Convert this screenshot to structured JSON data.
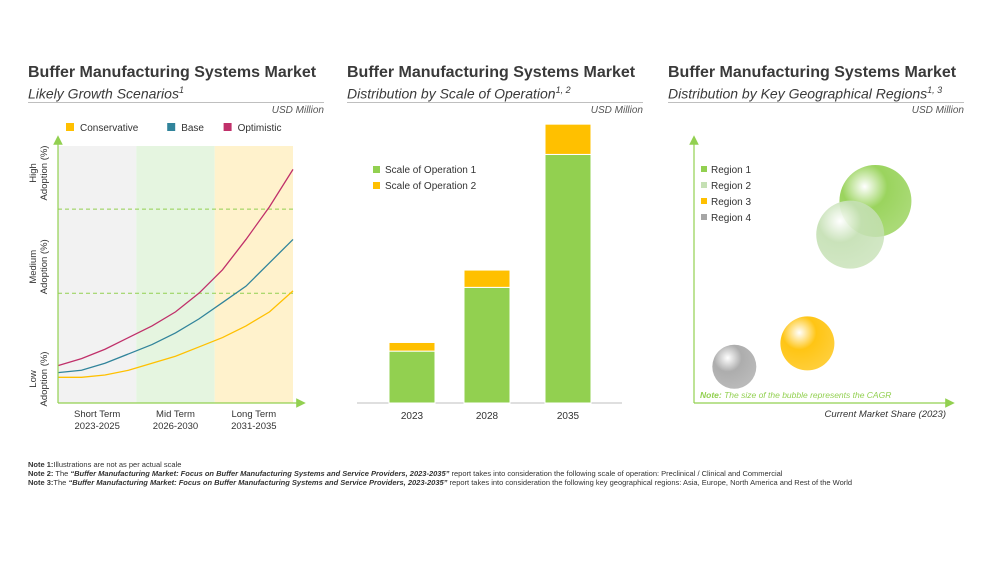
{
  "panels": [
    {
      "title": "Buffer Manufacturing Systems Market",
      "subtitle": "Likely Growth Scenarios",
      "subtitle_sup": "1",
      "unit": "USD Million"
    },
    {
      "title": "Buffer Manufacturing Systems Market",
      "subtitle": "Distribution by Scale of Operation",
      "subtitle_sup": "1, 2",
      "unit": "USD Million"
    },
    {
      "title": "Buffer Manufacturing Systems Market",
      "subtitle": "Distribution by Key Geographical Regions",
      "subtitle_sup": "1, 3",
      "unit": "USD Million"
    }
  ],
  "chart_data": [
    {
      "type": "line",
      "legend": [
        {
          "name": "Conservative",
          "color": "#FFC000"
        },
        {
          "name": "Base",
          "color": "#31849B"
        },
        {
          "name": "Optimistic",
          "color": "#C0306A"
        }
      ],
      "y_levels": [
        "Low Adoption (%)",
        "Medium Adoption (%)",
        "High Adoption (%)"
      ],
      "periods": [
        {
          "name": "Short Term",
          "years": "2023-2025",
          "color": "#F2F2F2"
        },
        {
          "name": "Mid Term",
          "years": "2026-2030",
          "color": "#E5F5E0"
        },
        {
          "name": "Long Term",
          "years": "2031-2035",
          "color": "#FFF2CC"
        }
      ],
      "x": [
        0,
        0.1,
        0.2,
        0.3,
        0.4,
        0.5,
        0.6,
        0.7,
        0.8,
        0.9,
        1.0
      ],
      "series": [
        {
          "name": "Conservative",
          "values": [
            0.11,
            0.11,
            0.12,
            0.14,
            0.17,
            0.2,
            0.24,
            0.28,
            0.33,
            0.39,
            0.48
          ]
        },
        {
          "name": "Base",
          "values": [
            0.13,
            0.14,
            0.17,
            0.21,
            0.25,
            0.3,
            0.36,
            0.43,
            0.5,
            0.6,
            0.7
          ]
        },
        {
          "name": "Optimistic",
          "values": [
            0.16,
            0.19,
            0.23,
            0.28,
            0.33,
            0.39,
            0.47,
            0.57,
            0.7,
            0.84,
            1.0
          ]
        }
      ],
      "reference_lines": [
        0.47,
        0.83
      ],
      "ylim": [
        0,
        1.1
      ]
    },
    {
      "type": "bar",
      "stacked": true,
      "categories": [
        "2023",
        "2028",
        "2035"
      ],
      "series": [
        {
          "name": "Scale of Operation  1",
          "color": "#92D050",
          "values": [
            48,
            107,
            230
          ]
        },
        {
          "name": "Scale of Operation  2",
          "color": "#FFC000",
          "values": [
            8,
            16,
            28
          ]
        }
      ],
      "ylim": [
        0,
        260
      ]
    },
    {
      "type": "scatter",
      "xlabel": "Current  Market Share (2023)",
      "note": "Note: The size of the bubble represents the CAGR",
      "note_label": "Note:",
      "note_text": " The size of the bubble represents the CAGR",
      "legend": [
        {
          "name": "Region  1",
          "color": "#92D050"
        },
        {
          "name": "Region  2",
          "color": "#C5E0B4"
        },
        {
          "name": "Region  3",
          "color": "#FFC000"
        },
        {
          "name": "Region  4",
          "color": "#A6A6A6"
        }
      ],
      "points": [
        {
          "name": "Region  1",
          "x": 0.72,
          "y": 0.78,
          "size": 36
        },
        {
          "name": "Region  2",
          "x": 0.62,
          "y": 0.65,
          "size": 34
        },
        {
          "name": "Region  3",
          "x": 0.45,
          "y": 0.23,
          "size": 27
        },
        {
          "name": "Region  4",
          "x": 0.16,
          "y": 0.14,
          "size": 22
        }
      ]
    }
  ],
  "notes": [
    {
      "label": "Note 1:",
      "text": "Illustrations are not as per actual scale",
      "report": "",
      "tail": ""
    },
    {
      "label": "Note 2:",
      "text": " The ",
      "report": "“Buffer Manufacturing Market: Focus on Buffer Manufacturing Systems and Service Providers, 2023-2035”",
      "tail": " report takes into consideration  the  following scale of operation: Preclinical / Clinical and Commercial"
    },
    {
      "label": "Note 3:",
      "text": "The  ",
      "report": "“Buffer Manufacturing Market: Focus on Buffer Manufacturing Systems and Service Providers, 2023-2035”",
      "tail": " report takes into consideration  the  following key geographical regions: Asia, Europe, North America and Rest of the World"
    }
  ]
}
